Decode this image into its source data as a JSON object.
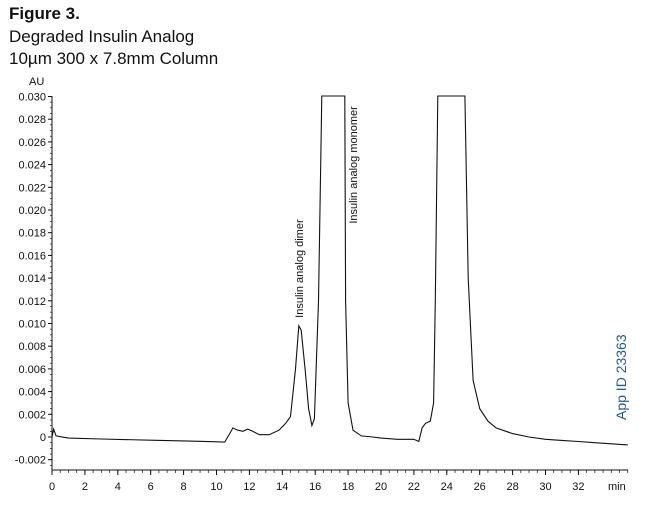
{
  "figure_label": "Figure 3.",
  "title": "Degraded Insulin Analog",
  "subtitle": "10µm 300 x 7.8mm Column",
  "app_id": "App ID 23363",
  "colors": {
    "trace": "#111111",
    "app_id": "#1f5c8f"
  },
  "chart_data": {
    "type": "line",
    "ylabel": "AU",
    "xlabel": "min",
    "xlim": [
      0,
      35
    ],
    "ylim": [
      -0.003,
      0.03
    ],
    "x_ticks": [
      "0",
      "2",
      "4",
      "6",
      "8",
      "10",
      "12",
      "14",
      "16",
      "18",
      "20",
      "22",
      "24",
      "26",
      "28",
      "30",
      "32"
    ],
    "y_ticks": [
      "0.030",
      "0.028",
      "0.026",
      "0.024",
      "0.022",
      "0.020",
      "0.018",
      "0.016",
      "0.014",
      "0.012",
      "0.010",
      "0.008",
      "0.006",
      "0.004",
      "0.002",
      "0",
      "-0.002"
    ],
    "y_tick_values": [
      0.03,
      0.028,
      0.026,
      0.024,
      0.022,
      0.02,
      0.018,
      0.016,
      0.014,
      0.012,
      0.01,
      0.008,
      0.006,
      0.004,
      0.002,
      0,
      -0.002
    ],
    "annotations": [
      {
        "text": "Insulin analog dimer",
        "x": 15.0,
        "y": 0.0105
      },
      {
        "text": "Insulin analog monomer",
        "x": 18.3,
        "y": 0.0188
      }
    ],
    "series": [
      {
        "points": [
          [
            0.0,
            0.0
          ],
          [
            0.1,
            0.0007
          ],
          [
            0.25,
            0.0001
          ],
          [
            1,
            -0.0001
          ],
          [
            3,
            -0.00018
          ],
          [
            6,
            -0.00028
          ],
          [
            9,
            -0.00038
          ],
          [
            10.5,
            -0.00045
          ],
          [
            10.8,
            0.0003
          ],
          [
            11.0,
            0.0008
          ],
          [
            11.3,
            0.0006
          ],
          [
            11.6,
            0.0005
          ],
          [
            11.9,
            0.0007
          ],
          [
            12.2,
            0.0005
          ],
          [
            12.6,
            0.0002
          ],
          [
            13.2,
            0.0002
          ],
          [
            13.8,
            0.0006
          ],
          [
            14.2,
            0.0012
          ],
          [
            14.5,
            0.0018
          ],
          [
            14.8,
            0.006
          ],
          [
            15.0,
            0.0098
          ],
          [
            15.15,
            0.0094
          ],
          [
            15.4,
            0.0058
          ],
          [
            15.6,
            0.0025
          ],
          [
            15.8,
            0.001
          ],
          [
            15.95,
            0.0016
          ],
          [
            16.2,
            0.012
          ],
          [
            16.4,
            0.031
          ],
          [
            17.8,
            0.031
          ],
          [
            17.85,
            0.012
          ],
          [
            18.0,
            0.003
          ],
          [
            18.3,
            0.0006
          ],
          [
            18.8,
            0.0001
          ],
          [
            19.5,
            0.0
          ],
          [
            20.0,
            -0.0001
          ],
          [
            21.0,
            -0.0002
          ],
          [
            22.0,
            -0.0002
          ],
          [
            22.3,
            -0.0004
          ],
          [
            22.5,
            0.0008
          ],
          [
            22.7,
            0.0012
          ],
          [
            23.0,
            0.0014
          ],
          [
            23.2,
            0.003
          ],
          [
            23.3,
            0.012
          ],
          [
            23.45,
            0.031
          ],
          [
            25.1,
            0.031
          ],
          [
            25.3,
            0.014
          ],
          [
            25.6,
            0.005
          ],
          [
            26.0,
            0.0025
          ],
          [
            26.5,
            0.0014
          ],
          [
            27.0,
            0.0008
          ],
          [
            28.0,
            0.0003
          ],
          [
            29.0,
            0.0
          ],
          [
            30.0,
            -0.0002
          ],
          [
            31.0,
            -0.0003
          ],
          [
            32.0,
            -0.0004
          ],
          [
            33.0,
            -0.0005
          ],
          [
            34.0,
            -0.0006
          ],
          [
            35.0,
            -0.0007
          ]
        ]
      }
    ]
  }
}
